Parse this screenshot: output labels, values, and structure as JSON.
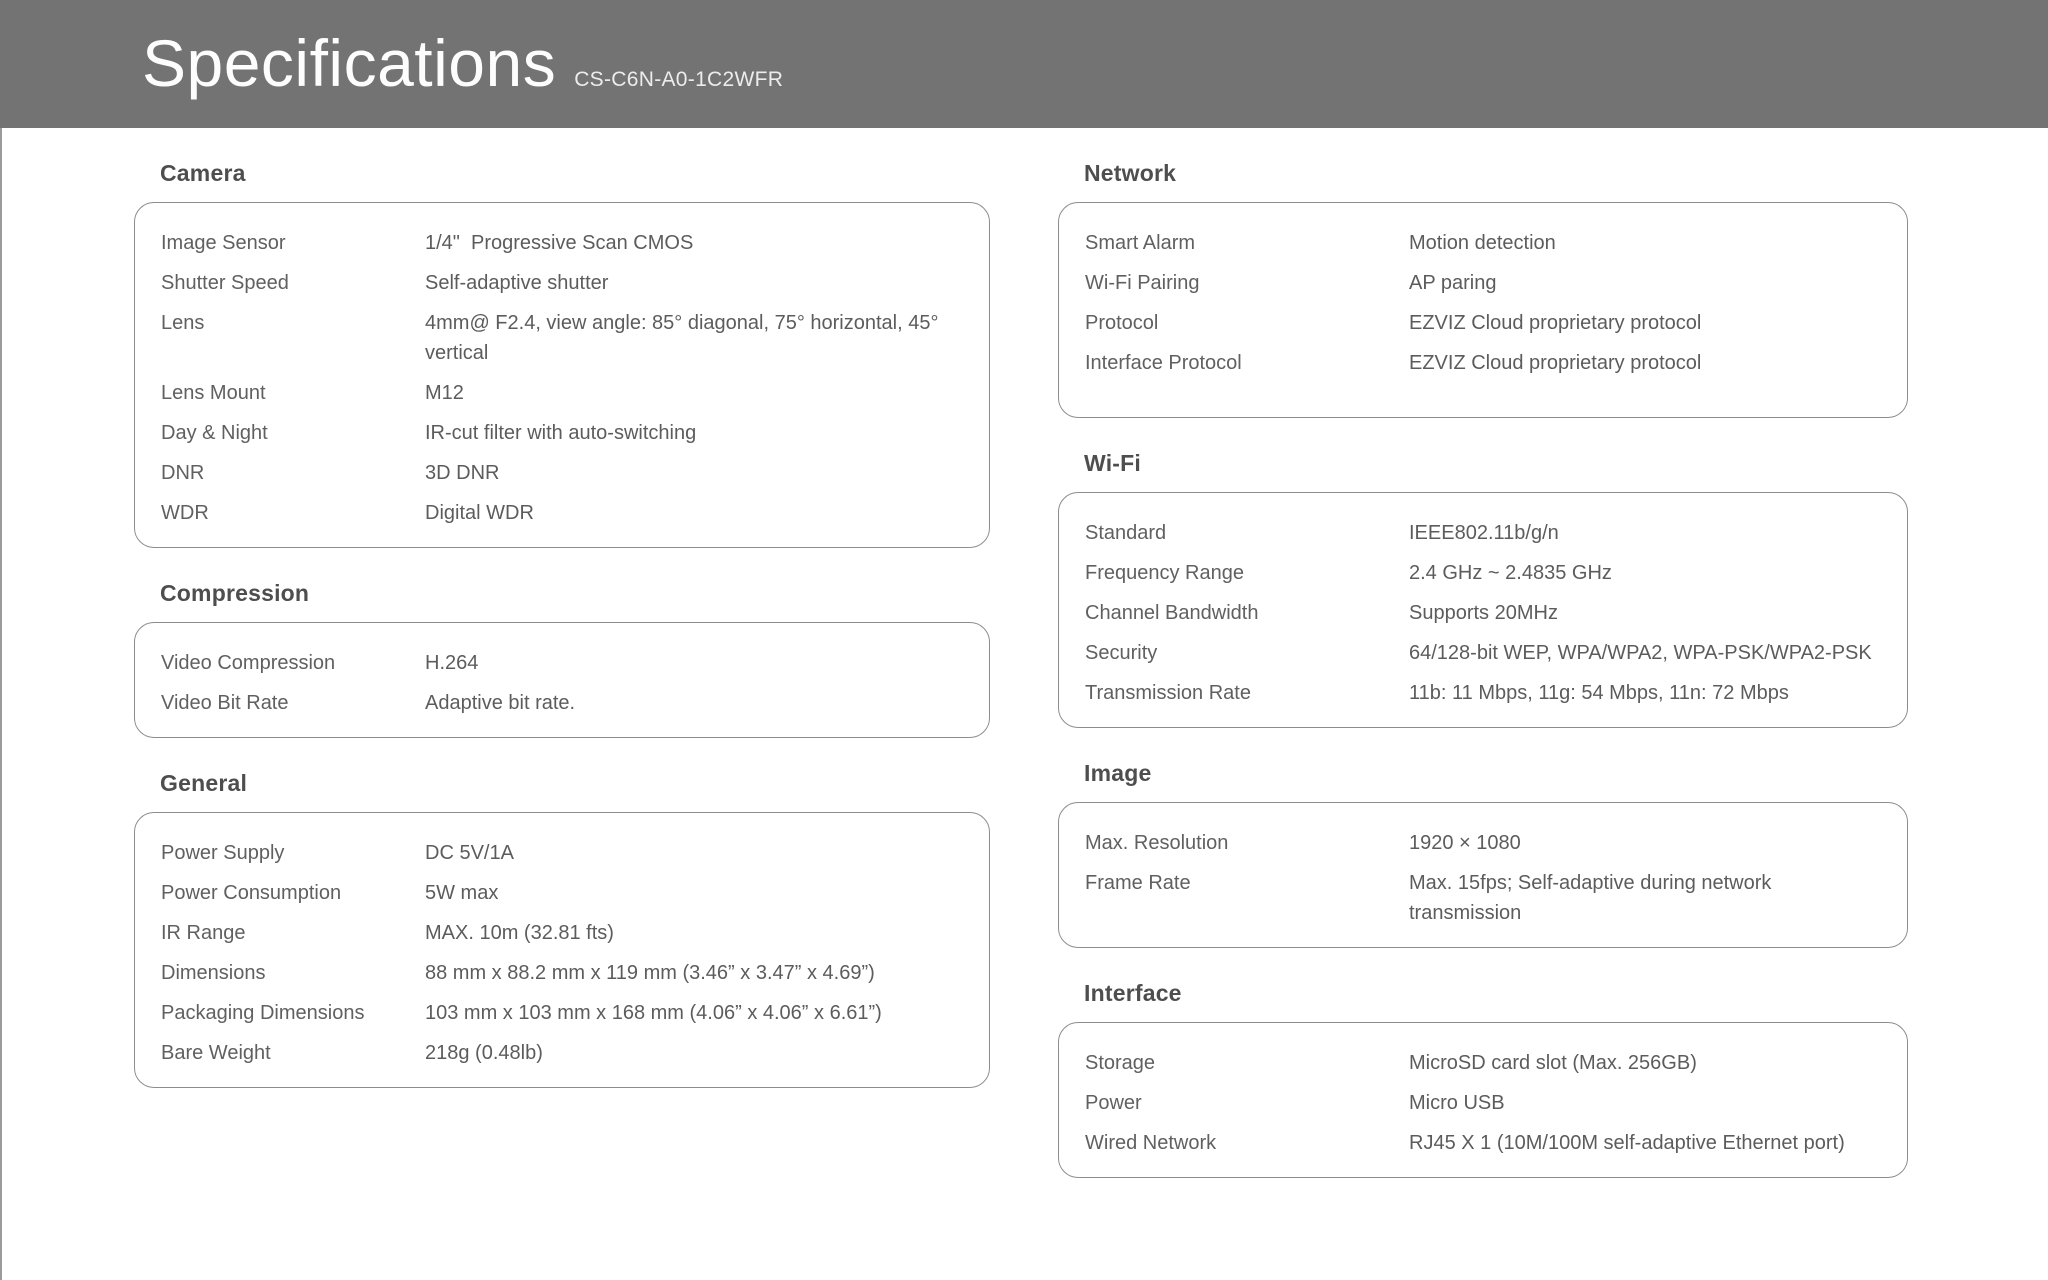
{
  "header": {
    "title": "Specifications",
    "model": "CS-C6N-A0-1C2WFR"
  },
  "colors": {
    "header_background": "#737373",
    "header_text": "#fdfdfd",
    "body_background": "#ffffff",
    "section_heading_text": "#4e4e4e",
    "spec_text": "#5f5f5f",
    "box_border": "#8d8d8d"
  },
  "columns": [
    {
      "sections": [
        {
          "title": "Camera",
          "rows": [
            {
              "label": "Image Sensor",
              "value": "1/4\"  Progressive Scan CMOS"
            },
            {
              "label": "Shutter Speed",
              "value": "Self-adaptive shutter"
            },
            {
              "label": "Lens",
              "value": "4mm@ F2.4, view angle: 85° diagonal, 75° horizontal, 45° vertical"
            },
            {
              "label": "Lens Mount",
              "value": "M12"
            },
            {
              "label": "Day & Night",
              "value": "IR-cut filter with auto-switching"
            },
            {
              "label": "DNR",
              "value": "3D DNR"
            },
            {
              "label": "WDR",
              "value": "Digital WDR"
            }
          ]
        },
        {
          "title": "Compression",
          "rows": [
            {
              "label": "Video Compression",
              "value": "H.264"
            },
            {
              "label": "Video Bit Rate",
              "value": "Adaptive bit rate."
            }
          ]
        },
        {
          "title": "General",
          "rows": [
            {
              "label": "Power Supply",
              "value": "DC 5V/1A"
            },
            {
              "label": "Power Consumption",
              "value": "5W max"
            },
            {
              "label": "IR Range",
              "value": "MAX. 10m (32.81 fts)"
            },
            {
              "label": "Dimensions",
              "value": "88 mm x 88.2 mm x 119 mm (3.46” x 3.47” x 4.69”)"
            },
            {
              "label": "Packaging Dimensions",
              "value": "103 mm x 103 mm x 168 mm (4.06” x 4.06” x 6.61”)"
            },
            {
              "label": "Bare Weight",
              "value": "218g (0.48lb)"
            }
          ]
        }
      ]
    },
    {
      "sections": [
        {
          "title": "Network",
          "rows": [
            {
              "label": "Smart Alarm",
              "value": "Motion detection"
            },
            {
              "label": "Wi-Fi Pairing",
              "value": "AP paring"
            },
            {
              "label": "Protocol",
              "value": "EZVIZ Cloud proprietary protocol"
            },
            {
              "label": "Interface Protocol",
              "value": "EZVIZ Cloud proprietary protocol"
            }
          ]
        },
        {
          "title": "Wi-Fi",
          "rows": [
            {
              "label": "Standard",
              "value": "IEEE802.11b/g/n"
            },
            {
              "label": "Frequency Range",
              "value": "2.4 GHz ~ 2.4835 GHz"
            },
            {
              "label": "Channel Bandwidth",
              "value": "Supports 20MHz"
            },
            {
              "label": "Security",
              "value": "64/128-bit WEP, WPA/WPA2, WPA-PSK/WPA2-PSK"
            },
            {
              "label": "Transmission Rate",
              "value": "11b: 11 Mbps, 11g: 54 Mbps, 11n: 72 Mbps"
            }
          ]
        },
        {
          "title": "Image",
          "rows": [
            {
              "label": "Max. Resolution",
              "value": "1920 × 1080"
            },
            {
              "label": "Frame Rate",
              "value": "Max. 15fps; Self-adaptive during network transmission"
            }
          ]
        },
        {
          "title": "Interface",
          "rows": [
            {
              "label": "Storage",
              "value": "MicroSD card slot (Max. 256GB)"
            },
            {
              "label": "Power",
              "value": "Micro USB"
            },
            {
              "label": "Wired Network",
              "value": "RJ45 X 1 (10M/100M self-adaptive Ethernet port)"
            }
          ]
        }
      ]
    }
  ]
}
